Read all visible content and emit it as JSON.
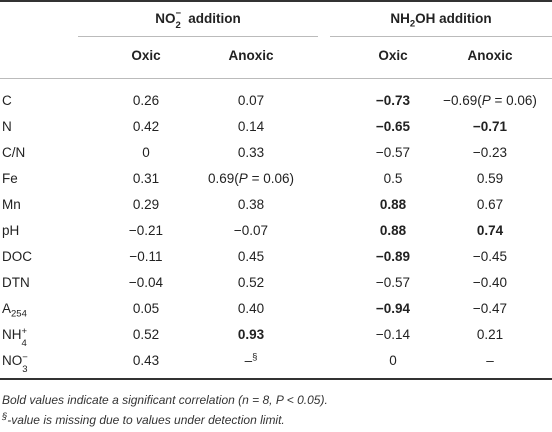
{
  "header": {
    "group1_base": "NO",
    "group1_sub": "2",
    "group1_sup": "−",
    "group1_tail": " addition",
    "group2_pre": "NH",
    "group2_sub": "2",
    "group2_tail": "OH addition",
    "col_oxic": "Oxic",
    "col_anoxic": "Anoxic"
  },
  "rows": [
    {
      "label": "C",
      "v1": "0.26",
      "v2": "0.07",
      "v3": "−0.73",
      "v4": "−0.69",
      "v4_note_p": "P",
      "v4_note_rest": " = 0.06)",
      "v4_note_open": "("
    },
    {
      "label": "N",
      "v1": "0.42",
      "v2": "0.14",
      "v3": "−0.65",
      "v4": "−0.71"
    },
    {
      "label": "C/N",
      "v1": "0",
      "v2": "0.33",
      "v3": "−0.57",
      "v4": "−0.23"
    },
    {
      "label": "Fe",
      "v1": "0.31",
      "v2": "0.69",
      "v2_note_open": "(",
      "v2_note_p": "P",
      "v2_note_rest": " = 0.06)",
      "v3": "0.5",
      "v4": "0.59"
    },
    {
      "label": "Mn",
      "v1": "0.29",
      "v2": "0.38",
      "v3": "0.88",
      "v4": "0.67"
    },
    {
      "label": "pH",
      "v1": "−0.21",
      "v2": "−0.07",
      "v3": "0.88",
      "v4": "0.74"
    },
    {
      "label": "DOC",
      "v1": "−0.11",
      "v2": "0.45",
      "v3": "−0.89",
      "v4": "−0.45"
    },
    {
      "label": "DTN",
      "v1": "−0.04",
      "v2": "0.52",
      "v3": "−0.57",
      "v4": "−0.40"
    },
    {
      "label_base": "A",
      "label_sub": "254",
      "v1": "0.05",
      "v2": "0.40",
      "v3": "−0.94",
      "v4": "−0.47"
    },
    {
      "label_base": "NH",
      "label_sub": "4",
      "label_sup": "+",
      "v1": "0.52",
      "v2": "0.93",
      "v3": "−0.14",
      "v4": "0.21"
    },
    {
      "label_base": "NO",
      "label_sub": "3",
      "label_sup": "−",
      "v1": "0.43",
      "v2": "–",
      "v2_sup": "§",
      "v3": "0",
      "v4": "–"
    }
  ],
  "footnotes": {
    "bold_note_a": "Bold values indicate a significant correlation (",
    "bold_note_n": "n",
    "bold_note_b": " = 8, ",
    "bold_note_p": "P",
    "bold_note_c": " < 0.05).",
    "missing_sup": "§",
    "missing_note": "-value is missing due to values under detection limit."
  }
}
